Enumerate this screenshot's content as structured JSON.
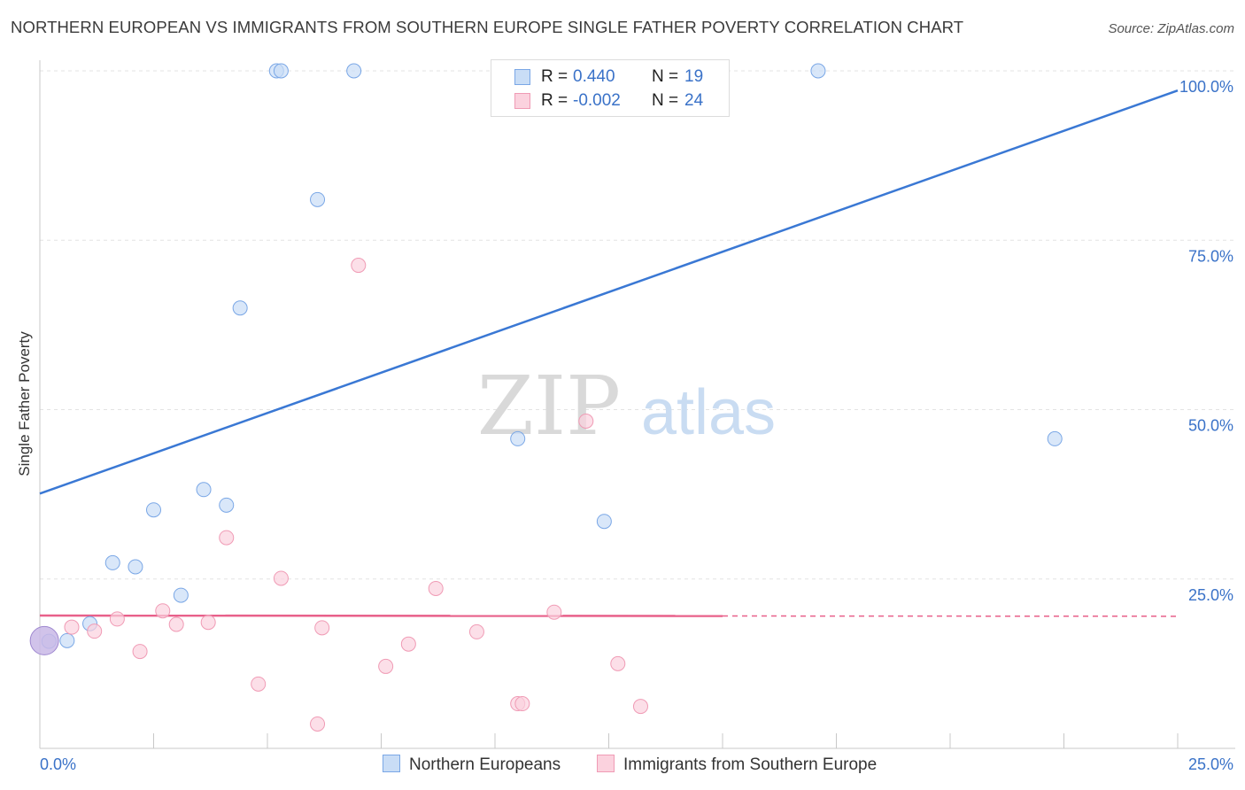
{
  "title": "NORTHERN EUROPEAN VS IMMIGRANTS FROM SOUTHERN EUROPE SINGLE FATHER POVERTY CORRELATION CHART",
  "source": "Source: ZipAtlas.com",
  "watermark": {
    "zip": "ZIP",
    "atlas": "atlas"
  },
  "colors": {
    "blue": "#3a78d4",
    "blue_fill": "#c9ddf6",
    "blue_stroke": "#7aa7e6",
    "pink": "#e8608a",
    "pink_fill": "#fbd2de",
    "pink_stroke": "#f09bb5",
    "axis_label": "#3a72c8",
    "grid": "#e3e3e3"
  },
  "stats": [
    {
      "r_label": "R =",
      "r_value": "0.440",
      "n_label": "N =",
      "n_value": "19",
      "series": "blue"
    },
    {
      "r_label": "R =",
      "r_value": "-0.002",
      "n_label": "N =",
      "n_value": "24",
      "series": "pink"
    }
  ],
  "legend": [
    {
      "label": "Northern Europeans",
      "series": "blue"
    },
    {
      "label": "Immigrants from Southern Europe",
      "series": "pink"
    }
  ],
  "chart_data": {
    "type": "scatter",
    "title": "NORTHERN EUROPEAN VS IMMIGRANTS FROM SOUTHERN EUROPE SINGLE FATHER POVERTY CORRELATION CHART",
    "xlabel": "",
    "ylabel": "Single Father Poverty",
    "xlim": [
      0,
      25
    ],
    "ylim": [
      0,
      100
    ],
    "x_tick_labels": {
      "left": "0.0%",
      "right": "25.0%"
    },
    "y_ticks": [
      {
        "value": 25,
        "label": "25.0%"
      },
      {
        "value": 50,
        "label": "50.0%"
      },
      {
        "value": 75,
        "label": "75.0%"
      },
      {
        "value": 100,
        "label": "100.0%"
      }
    ],
    "grid": true,
    "legend_position": "bottom",
    "series": [
      {
        "name": "Northern Europeans",
        "color": "#3a78d4",
        "points": [
          [
            5.2,
            100
          ],
          [
            5.3,
            100
          ],
          [
            6.9,
            100
          ],
          [
            14.2,
            100
          ],
          [
            17.1,
            100
          ],
          [
            6.1,
            81
          ],
          [
            4.4,
            65
          ],
          [
            10.5,
            45.7
          ],
          [
            22.3,
            45.7
          ],
          [
            3.6,
            38.2
          ],
          [
            4.1,
            35.9
          ],
          [
            2.5,
            35.2
          ],
          [
            12.4,
            33.5
          ],
          [
            1.6,
            27.4
          ],
          [
            2.1,
            26.8
          ],
          [
            3.1,
            22.6
          ],
          [
            1.1,
            18.4
          ],
          [
            0.6,
            15.9
          ],
          [
            0.2,
            15.8
          ]
        ],
        "trend": {
          "x0": 0,
          "y0": 37.6,
          "x1": 25,
          "y1": 97.1
        }
      },
      {
        "name": "Immigrants from Southern Europe",
        "color": "#e8608a",
        "points": [
          [
            7.0,
            71.3
          ],
          [
            12.0,
            48.3
          ],
          [
            4.1,
            31.1
          ],
          [
            5.3,
            25.1
          ],
          [
            8.7,
            23.6
          ],
          [
            2.7,
            20.3
          ],
          [
            11.3,
            20.1
          ],
          [
            1.7,
            19.1
          ],
          [
            3.0,
            18.3
          ],
          [
            3.7,
            18.6
          ],
          [
            0.7,
            17.9
          ],
          [
            6.2,
            17.8
          ],
          [
            1.2,
            17.3
          ],
          [
            9.6,
            17.2
          ],
          [
            8.1,
            15.4
          ],
          [
            2.2,
            14.3
          ],
          [
            12.7,
            12.5
          ],
          [
            7.6,
            12.1
          ],
          [
            4.8,
            9.5
          ],
          [
            10.5,
            6.6
          ],
          [
            10.6,
            6.6
          ],
          [
            13.2,
            6.2
          ],
          [
            6.1,
            3.6
          ],
          [
            0.1,
            15.9
          ]
        ],
        "trend": {
          "x0": 0,
          "y0": 19.6,
          "x1": 25,
          "y1": 19.5,
          "solid_until_x": 15
        }
      }
    ]
  }
}
